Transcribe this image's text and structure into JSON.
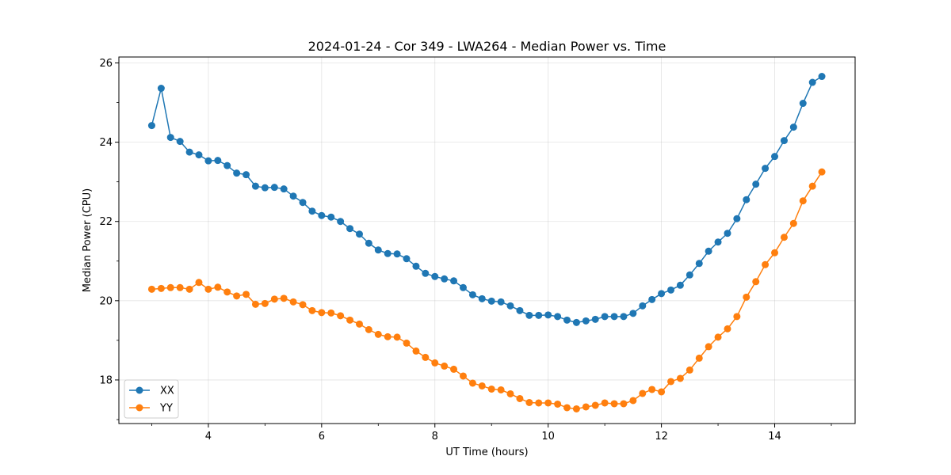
{
  "chart_data": {
    "type": "line",
    "title": "2024-01-24 - Cor 349 - LWA264 - Median Power vs. Time",
    "xlabel": "UT Time (hours)",
    "ylabel": "Median Power (CPU)",
    "xlim": [
      2.42,
      15.42
    ],
    "ylim": [
      16.9,
      26.15
    ],
    "xticks": [
      4,
      6,
      8,
      10,
      12,
      14
    ],
    "xtick_labels": [
      "4",
      "6",
      "8",
      "10",
      "12",
      "14"
    ],
    "yticks": [
      18,
      20,
      22,
      24,
      26
    ],
    "ytick_labels": [
      "18",
      "20",
      "22",
      "24",
      "26"
    ],
    "grid": true,
    "legend_position": "lower-left",
    "x": [
      3.0,
      3.167,
      3.333,
      3.5,
      3.667,
      3.833,
      4.0,
      4.167,
      4.333,
      4.5,
      4.667,
      4.833,
      5.0,
      5.167,
      5.333,
      5.5,
      5.667,
      5.833,
      6.0,
      6.167,
      6.333,
      6.5,
      6.667,
      6.833,
      7.0,
      7.167,
      7.333,
      7.5,
      7.667,
      7.833,
      8.0,
      8.167,
      8.333,
      8.5,
      8.667,
      8.833,
      9.0,
      9.167,
      9.333,
      9.5,
      9.667,
      9.833,
      10.0,
      10.167,
      10.333,
      10.5,
      10.667,
      10.833,
      11.0,
      11.167,
      11.333,
      11.5,
      11.667,
      11.833,
      12.0,
      12.167,
      12.333,
      12.5,
      12.667,
      12.833,
      13.0,
      13.167,
      13.333,
      13.5,
      13.667,
      13.833,
      14.0,
      14.167,
      14.333,
      14.5,
      14.667,
      14.833
    ],
    "series": [
      {
        "name": "XX",
        "color": "#1f77b4",
        "values": [
          24.42,
          25.36,
          24.12,
          24.02,
          23.75,
          23.68,
          23.53,
          23.54,
          23.41,
          23.22,
          23.18,
          22.89,
          22.85,
          22.86,
          22.82,
          22.64,
          22.48,
          22.26,
          22.15,
          22.11,
          22.0,
          21.82,
          21.68,
          21.45,
          21.28,
          21.19,
          21.18,
          21.06,
          20.87,
          20.69,
          20.61,
          20.55,
          20.5,
          20.33,
          20.15,
          20.05,
          19.99,
          19.97,
          19.87,
          19.75,
          19.63,
          19.63,
          19.64,
          19.6,
          19.51,
          19.45,
          19.49,
          19.53,
          19.6,
          19.6,
          19.6,
          19.68,
          19.87,
          20.03,
          20.18,
          20.27,
          20.39,
          20.65,
          20.94,
          21.25,
          21.48,
          21.7,
          22.07,
          22.55,
          22.94,
          23.34,
          23.64,
          24.04,
          24.38,
          24.98,
          25.51,
          25.66
        ]
      },
      {
        "name": "YY",
        "color": "#ff7f0e",
        "values": [
          20.29,
          20.31,
          20.33,
          20.33,
          20.29,
          20.46,
          20.29,
          20.34,
          20.22,
          20.12,
          20.16,
          19.91,
          19.93,
          20.04,
          20.06,
          19.97,
          19.9,
          19.75,
          19.7,
          19.69,
          19.62,
          19.51,
          19.41,
          19.27,
          19.15,
          19.09,
          19.08,
          18.93,
          18.73,
          18.57,
          18.43,
          18.35,
          18.27,
          18.1,
          17.92,
          17.85,
          17.77,
          17.75,
          17.65,
          17.53,
          17.43,
          17.42,
          17.42,
          17.39,
          17.3,
          17.27,
          17.32,
          17.36,
          17.42,
          17.4,
          17.4,
          17.48,
          17.66,
          17.76,
          17.7,
          17.96,
          18.04,
          18.25,
          18.55,
          18.84,
          19.08,
          19.29,
          19.6,
          20.09,
          20.48,
          20.91,
          21.21,
          21.6,
          21.95,
          22.52,
          22.89,
          23.25
        ]
      }
    ]
  }
}
